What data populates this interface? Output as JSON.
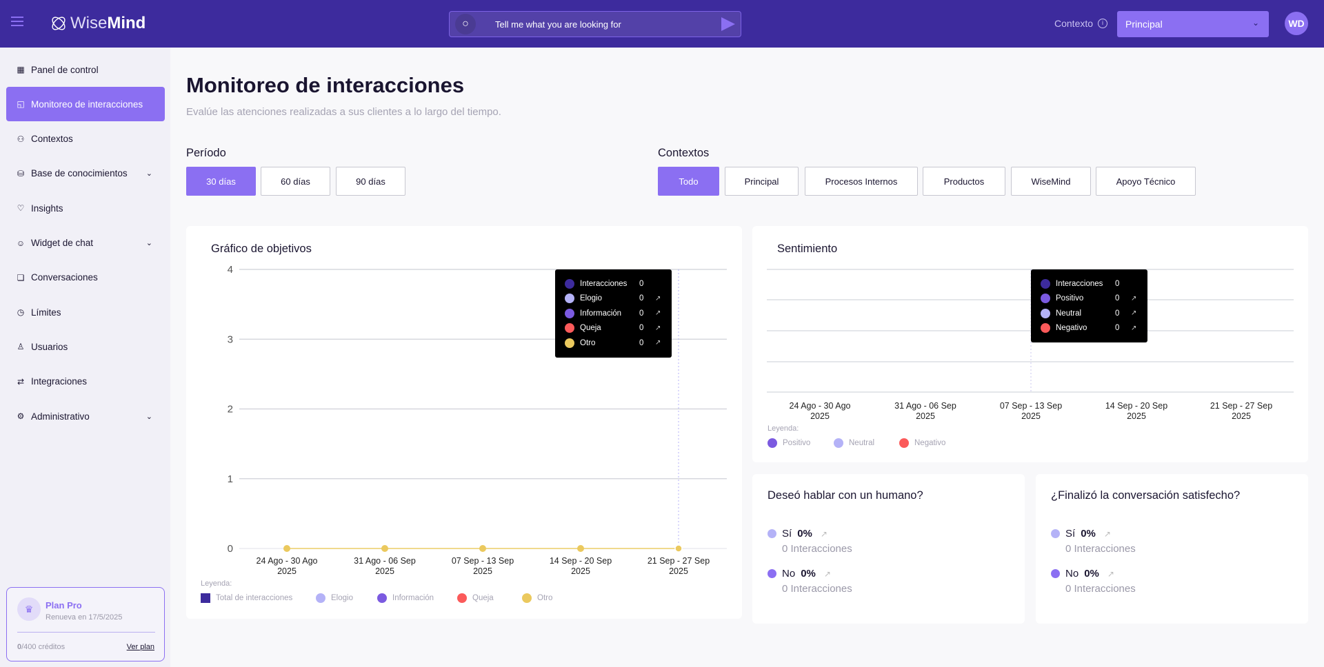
{
  "header": {
    "app_name_light": "Wise",
    "app_name_bold": "Mind",
    "search_placeholder": "Tell me what you are looking for",
    "context_label": "Contexto",
    "context_value": "Principal",
    "avatar_initials": "WD"
  },
  "sidebar": {
    "items": [
      {
        "label": "Panel de control",
        "icon": "grid-icon"
      },
      {
        "label": "Monitoreo de interacciones",
        "icon": "message-icon",
        "active": true
      },
      {
        "label": "Contextos",
        "icon": "hierarchy-icon"
      },
      {
        "label": "Base de conocimientos",
        "icon": "database-icon",
        "expandable": true
      },
      {
        "label": "Insights",
        "icon": "lightbulb-icon"
      },
      {
        "label": "Widget de chat",
        "icon": "bot-icon",
        "expandable": true
      },
      {
        "label": "Conversaciones",
        "icon": "chat-icon"
      },
      {
        "label": "Límites",
        "icon": "timer-icon"
      },
      {
        "label": "Usuarios",
        "icon": "user-icon"
      },
      {
        "label": "Integraciones",
        "icon": "integration-icon"
      },
      {
        "label": "Administrativo",
        "icon": "gear-icon",
        "expandable": true
      }
    ],
    "plan": {
      "name": "Plan Pro",
      "renew": "Renueva en 17/5/2025",
      "credits_used": "0",
      "credits_total": "/400 créditos",
      "link": "Ver plan"
    }
  },
  "main": {
    "title": "Monitoreo de interacciones",
    "subtitle": "Evalúe las atenciones realizadas a sus clientes a lo largo del tiempo.",
    "period_label": "Período",
    "periods": [
      "30 días",
      "60 días",
      "90 días"
    ],
    "period_selected": "30 días",
    "contexts_label": "Contextos",
    "contexts": [
      "Todo",
      "Principal",
      "Procesos Internos",
      "Productos",
      "WiseMind",
      "Apoyo Técnico"
    ],
    "context_selected": "Todo"
  },
  "colors": {
    "accent": "#8b6ff2",
    "header": "#3d2b9d",
    "total": "#3d2b9d",
    "elogio": "#b4b2f7",
    "informacion": "#7b5ae0",
    "queja": "#fb5a5a",
    "otro": "#ebc95e",
    "positivo": "#7b5ae0",
    "neutral": "#b4b2f7",
    "negativo": "#fb5a5a"
  },
  "chart_data": [
    {
      "type": "line",
      "title": "Gráfico de objetivos",
      "categories": [
        "24 Ago - 30 Ago|2025",
        "31 Ago - 06 Sep|2025",
        "07 Sep - 13 Sep|2025",
        "14 Sep - 20 Sep|2025",
        "21 Sep - 27 Sep|2025"
      ],
      "ylim": [
        0,
        4
      ],
      "yticks": [
        0,
        1,
        2,
        3,
        4
      ],
      "grid": true,
      "legend_title": "Leyenda:",
      "series": [
        {
          "name": "Total de interacciones",
          "values": [
            0,
            0,
            0,
            0,
            0
          ]
        },
        {
          "name": "Elogio",
          "values": [
            0,
            0,
            0,
            0,
            0
          ]
        },
        {
          "name": "Información",
          "values": [
            0,
            0,
            0,
            0,
            0
          ]
        },
        {
          "name": "Queja",
          "values": [
            0,
            0,
            0,
            0,
            0
          ]
        },
        {
          "name": "Otro",
          "values": [
            0,
            0,
            0,
            0,
            0
          ]
        }
      ],
      "tooltip": {
        "category_index": 4,
        "rows": [
          {
            "label": "Interacciones",
            "value": "0"
          },
          {
            "label": "Elogio",
            "value": "0"
          },
          {
            "label": "Información",
            "value": "0"
          },
          {
            "label": "Queja",
            "value": "0"
          },
          {
            "label": "Otro",
            "value": "0"
          }
        ]
      }
    },
    {
      "type": "bar",
      "title": "Sentimiento",
      "categories": [
        "24 Ago - 30 Ago|2025",
        "31 Ago - 06 Sep|2025",
        "07 Sep - 13 Sep|2025",
        "14 Sep - 20 Sep|2025",
        "21 Sep - 27 Sep|2025"
      ],
      "grid": true,
      "legend_title": "Leyenda:",
      "series": [
        {
          "name": "Positivo",
          "values": [
            0,
            0,
            0,
            0,
            0
          ]
        },
        {
          "name": "Neutral",
          "values": [
            0,
            0,
            0,
            0,
            0
          ]
        },
        {
          "name": "Negativo",
          "values": [
            0,
            0,
            0,
            0,
            0
          ]
        }
      ],
      "tooltip": {
        "category_index": 2,
        "rows": [
          {
            "label": "Interacciones",
            "value": "0"
          },
          {
            "label": "Positivo",
            "value": "0"
          },
          {
            "label": "Neutral",
            "value": "0"
          },
          {
            "label": "Negativo",
            "value": "0"
          }
        ]
      }
    }
  ],
  "questions": [
    {
      "title": "Deseó hablar con un humano?",
      "yes_label": "Sí",
      "yes_pct": "0%",
      "yes_sub": "0 Interacciones",
      "no_label": "No",
      "no_pct": "0%",
      "no_sub": "0 Interacciones"
    },
    {
      "title": "¿Finalizó la conversación satisfecho?",
      "yes_label": "Sí",
      "yes_pct": "0%",
      "yes_sub": "0 Interacciones",
      "no_label": "No",
      "no_pct": "0%",
      "no_sub": "0 Interacciones"
    }
  ]
}
